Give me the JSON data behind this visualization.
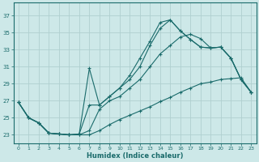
{
  "title": "",
  "xlabel": "Humidex (Indice chaleur)",
  "ylabel": "",
  "bg_color": "#cde8e8",
  "grid_color": "#b0d0d0",
  "line_color": "#1a6b6b",
  "xlim": [
    -0.5,
    23.5
  ],
  "ylim": [
    22.0,
    38.5
  ],
  "xticks": [
    0,
    1,
    2,
    3,
    4,
    5,
    6,
    7,
    8,
    9,
    10,
    11,
    12,
    13,
    14,
    15,
    16,
    17,
    18,
    19,
    20,
    21,
    22,
    23
  ],
  "yticks": [
    23,
    25,
    27,
    29,
    31,
    33,
    35,
    37
  ],
  "line1_x": [
    0,
    1,
    2,
    3,
    4,
    5,
    6,
    7,
    8,
    9,
    10,
    11,
    12,
    13,
    14,
    15,
    16,
    17,
    18,
    19,
    20,
    21,
    22,
    23
  ],
  "line1_y": [
    26.8,
    25.0,
    24.4,
    23.2,
    23.1,
    23.0,
    23.1,
    30.8,
    26.5,
    27.5,
    28.5,
    30.0,
    32.0,
    34.0,
    36.2,
    36.5,
    35.2,
    34.2,
    33.3,
    33.2,
    33.3,
    32.0,
    29.5,
    28.0
  ],
  "line2_x": [
    0,
    1,
    2,
    3,
    4,
    5,
    6,
    7,
    8,
    9,
    10,
    11,
    12,
    13,
    14,
    15,
    16,
    17,
    18,
    19,
    20,
    21,
    22,
    23
  ],
  "line2_y": [
    26.8,
    25.0,
    24.4,
    23.2,
    23.1,
    23.0,
    23.1,
    26.5,
    26.5,
    27.5,
    28.5,
    29.5,
    31.0,
    33.5,
    35.5,
    36.5,
    35.2,
    34.2,
    33.3,
    33.2,
    33.3,
    32.0,
    29.5,
    28.0
  ],
  "line3_x": [
    0,
    1,
    2,
    3,
    4,
    5,
    6,
    7,
    8,
    9,
    10,
    11,
    12,
    13,
    14,
    15,
    16,
    17,
    18,
    19,
    20,
    21,
    22,
    23
  ],
  "line3_y": [
    26.8,
    25.0,
    24.4,
    23.2,
    23.1,
    23.0,
    23.0,
    23.5,
    26.0,
    27.0,
    27.5,
    28.5,
    29.5,
    31.0,
    32.5,
    33.5,
    34.5,
    34.8,
    34.3,
    33.2,
    33.3,
    32.0,
    29.5,
    28.0
  ],
  "line4_x": [
    0,
    1,
    2,
    3,
    4,
    5,
    6,
    7,
    8,
    9,
    10,
    11,
    12,
    13,
    14,
    15,
    16,
    17,
    18,
    19,
    20,
    21,
    22,
    23
  ],
  "line4_y": [
    26.8,
    25.0,
    24.4,
    23.2,
    23.1,
    23.0,
    23.0,
    23.0,
    23.5,
    24.2,
    24.8,
    25.3,
    25.8,
    26.3,
    26.9,
    27.4,
    28.0,
    28.5,
    29.0,
    29.2,
    29.5,
    29.6,
    29.7,
    28.0
  ]
}
